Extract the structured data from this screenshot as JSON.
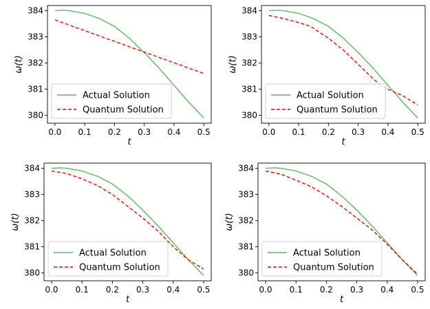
{
  "chart_data": [
    {
      "type": "line",
      "xlabel": "t",
      "ylabel": "ω(t)",
      "xlim": [
        -0.025,
        0.525
      ],
      "ylim": [
        379.7,
        384.2
      ],
      "x_ticks": [
        0.0,
        0.1,
        0.2,
        0.3,
        0.4,
        0.5
      ],
      "x_tick_labels": [
        "0.0",
        "0.1",
        "0.2",
        "0.3",
        "0.4",
        "0.5"
      ],
      "y_ticks": [
        380,
        381,
        382,
        383,
        384
      ],
      "y_tick_labels": [
        "380",
        "381",
        "382",
        "383",
        "384"
      ],
      "legend_position": "lower-left",
      "series": [
        {
          "name": "Actual Solution",
          "color": "#5cb85c",
          "style": "solid",
          "x": [
            0.0,
            0.03,
            0.05,
            0.1,
            0.15,
            0.2,
            0.25,
            0.3,
            0.35,
            0.4,
            0.45,
            0.5
          ],
          "y": [
            384.0,
            384.02,
            384.0,
            383.9,
            383.7,
            383.4,
            382.95,
            382.4,
            381.8,
            381.15,
            380.5,
            379.9
          ]
        },
        {
          "name": "Quantum Solution",
          "color": "#ff0000",
          "style": "dashed",
          "x": [
            0.0,
            0.5
          ],
          "y": [
            383.65,
            381.6
          ]
        }
      ]
    },
    {
      "type": "line",
      "xlabel": "t",
      "ylabel": "ω(t)",
      "xlim": [
        -0.025,
        0.525
      ],
      "ylim": [
        379.7,
        384.2
      ],
      "x_ticks": [
        0.0,
        0.1,
        0.2,
        0.3,
        0.4,
        0.5
      ],
      "x_tick_labels": [
        "0.0",
        "0.1",
        "0.2",
        "0.3",
        "0.4",
        "0.5"
      ],
      "y_ticks": [
        380,
        381,
        382,
        383,
        384
      ],
      "y_tick_labels": [
        "380",
        "381",
        "382",
        "383",
        "384"
      ],
      "legend_position": "lower-left",
      "series": [
        {
          "name": "Actual Solution",
          "color": "#5cb85c",
          "style": "solid",
          "x": [
            0.0,
            0.03,
            0.05,
            0.1,
            0.15,
            0.2,
            0.25,
            0.3,
            0.35,
            0.4,
            0.45,
            0.5
          ],
          "y": [
            384.0,
            384.02,
            384.0,
            383.9,
            383.7,
            383.4,
            382.95,
            382.4,
            381.8,
            381.15,
            380.5,
            379.9
          ]
        },
        {
          "name": "Quantum Solution",
          "color": "#ff0000",
          "style": "dashed",
          "x": [
            0.0,
            0.05,
            0.1,
            0.14,
            0.2,
            0.25,
            0.3,
            0.35,
            0.38,
            0.4,
            0.45,
            0.5
          ],
          "y": [
            383.82,
            383.7,
            383.55,
            383.4,
            382.95,
            382.5,
            381.95,
            381.4,
            381.1,
            381.0,
            380.75,
            380.4
          ]
        }
      ]
    },
    {
      "type": "line",
      "xlabel": "t",
      "ylabel": "ω(t)",
      "xlim": [
        -0.025,
        0.525
      ],
      "ylim": [
        379.7,
        384.2
      ],
      "x_ticks": [
        0.0,
        0.1,
        0.2,
        0.3,
        0.4,
        0.5
      ],
      "x_tick_labels": [
        "0.0",
        "0.1",
        "0.2",
        "0.3",
        "0.4",
        "0.5"
      ],
      "y_ticks": [
        380,
        381,
        382,
        383,
        384
      ],
      "y_tick_labels": [
        "380",
        "381",
        "382",
        "383",
        "384"
      ],
      "legend_position": "lower-left",
      "series": [
        {
          "name": "Actual Solution",
          "color": "#5cb85c",
          "style": "solid",
          "x": [
            0.0,
            0.03,
            0.05,
            0.1,
            0.15,
            0.2,
            0.25,
            0.3,
            0.35,
            0.4,
            0.45,
            0.5
          ],
          "y": [
            384.0,
            384.02,
            384.0,
            383.9,
            383.7,
            383.4,
            382.95,
            382.4,
            381.8,
            381.15,
            380.5,
            379.9
          ]
        },
        {
          "name": "Quantum Solution",
          "color": "#ff0000",
          "style": "dashed",
          "x": [
            0.0,
            0.05,
            0.1,
            0.15,
            0.2,
            0.25,
            0.3,
            0.35,
            0.4,
            0.45,
            0.5
          ],
          "y": [
            383.9,
            383.8,
            383.6,
            383.35,
            383.0,
            382.55,
            382.1,
            381.6,
            381.0,
            380.5,
            380.15
          ]
        }
      ]
    },
    {
      "type": "line",
      "xlabel": "t",
      "ylabel": "ω(t)",
      "xlim": [
        -0.025,
        0.525
      ],
      "ylim": [
        379.7,
        384.2
      ],
      "x_ticks": [
        0.0,
        0.1,
        0.2,
        0.3,
        0.4,
        0.5
      ],
      "x_tick_labels": [
        "0.0",
        "0.1",
        "0.2",
        "0.3",
        "0.4",
        "0.5"
      ],
      "y_ticks": [
        380,
        381,
        382,
        383,
        384
      ],
      "y_tick_labels": [
        "380",
        "381",
        "382",
        "383",
        "384"
      ],
      "legend_position": "lower-left",
      "series": [
        {
          "name": "Actual Solution",
          "color": "#5cb85c",
          "style": "solid",
          "x": [
            0.0,
            0.03,
            0.05,
            0.1,
            0.15,
            0.2,
            0.25,
            0.3,
            0.35,
            0.4,
            0.45,
            0.5
          ],
          "y": [
            384.0,
            384.02,
            384.0,
            383.9,
            383.7,
            383.4,
            382.95,
            382.4,
            381.8,
            381.15,
            380.5,
            379.9
          ]
        },
        {
          "name": "Quantum Solution",
          "color": "#ff0000",
          "style": "dashed",
          "x": [
            0.0,
            0.05,
            0.1,
            0.15,
            0.2,
            0.25,
            0.3,
            0.35,
            0.4,
            0.45,
            0.5
          ],
          "y": [
            383.9,
            383.78,
            383.55,
            383.3,
            382.95,
            382.55,
            382.1,
            381.65,
            381.1,
            380.5,
            379.95
          ]
        }
      ]
    }
  ]
}
